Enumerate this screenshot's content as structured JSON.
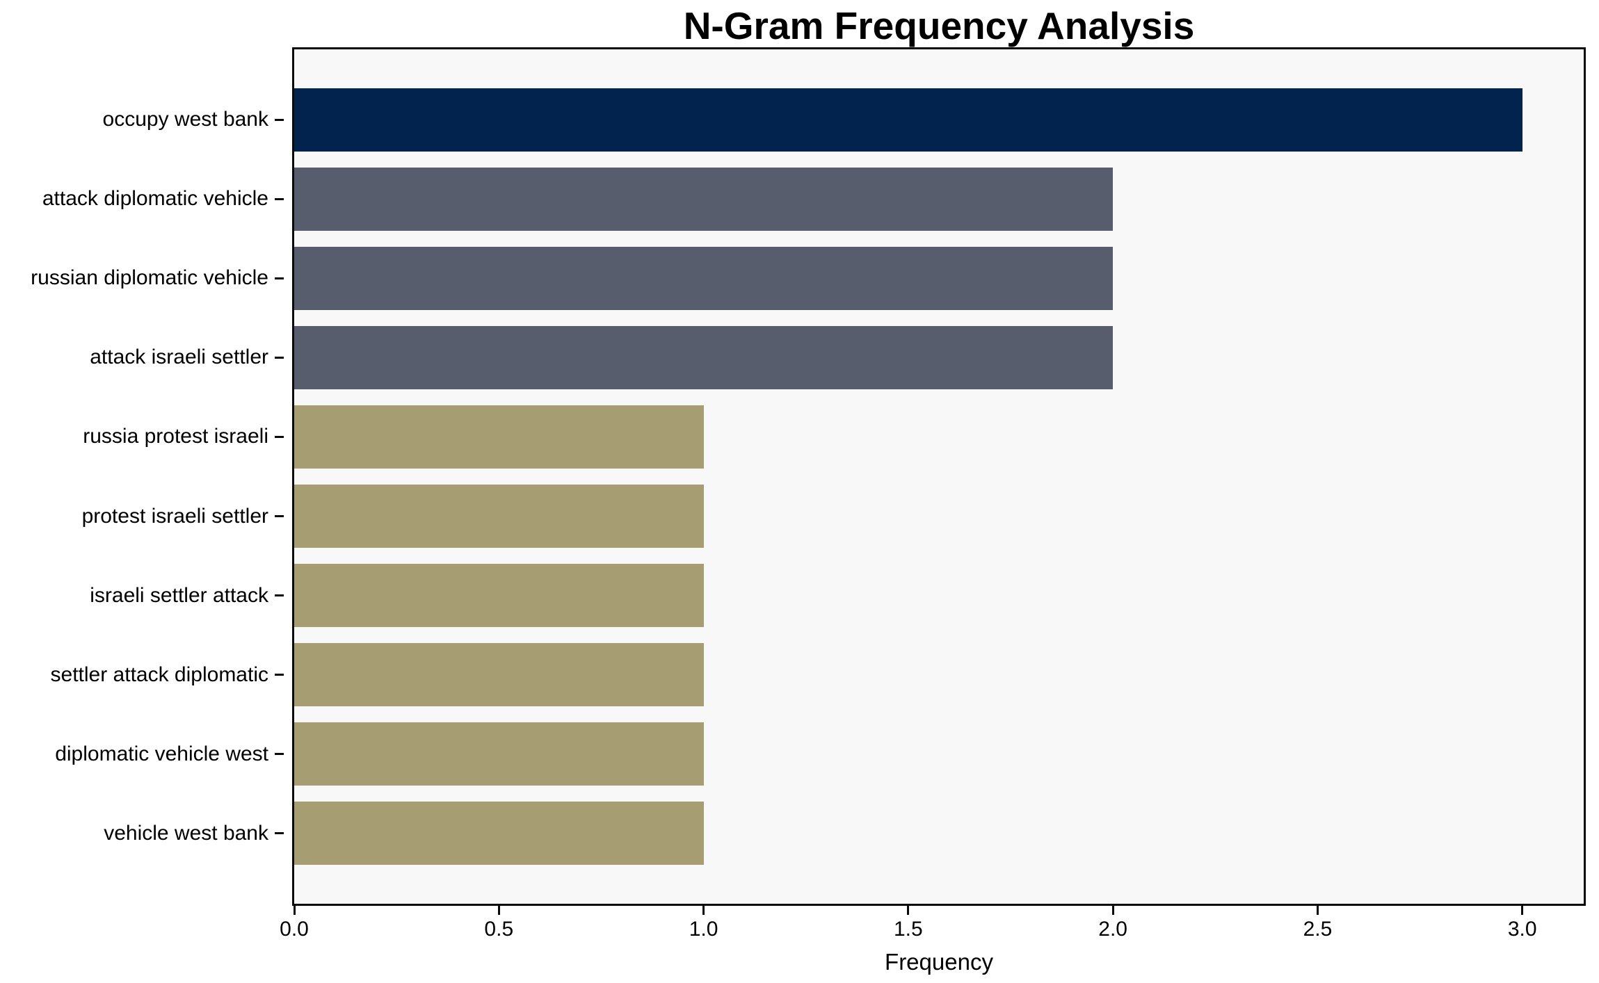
{
  "chart_data": {
    "type": "bar",
    "orientation": "horizontal",
    "title": "N-Gram Frequency Analysis",
    "xlabel": "Frequency",
    "ylabel": "",
    "categories": [
      "occupy west bank",
      "attack diplomatic vehicle",
      "russian diplomatic vehicle",
      "attack israeli settler",
      "russia protest israeli",
      "protest israeli settler",
      "israeli settler attack",
      "settler attack diplomatic",
      "diplomatic vehicle west",
      "vehicle west bank"
    ],
    "values": [
      3,
      2,
      2,
      2,
      1,
      1,
      1,
      1,
      1,
      1
    ],
    "bar_colors": [
      "#02234e",
      "#575d6d",
      "#575d6d",
      "#575d6d",
      "#a69d72",
      "#a69d72",
      "#a69d72",
      "#a69d72",
      "#a69d72",
      "#a69d72"
    ],
    "xlim": [
      0,
      3.15
    ],
    "xticks": [
      0,
      0.5,
      1,
      1.5,
      2,
      2.5,
      3
    ],
    "xtick_labels": [
      "0.0",
      "0.5",
      "1.0",
      "1.5",
      "2.0",
      "2.5",
      "3.0"
    ],
    "grid": false,
    "legend_position": "none",
    "plot_background": "#f8f8f8",
    "figure_background": "#ffffff",
    "frame_color": "#0a0a0a"
  }
}
